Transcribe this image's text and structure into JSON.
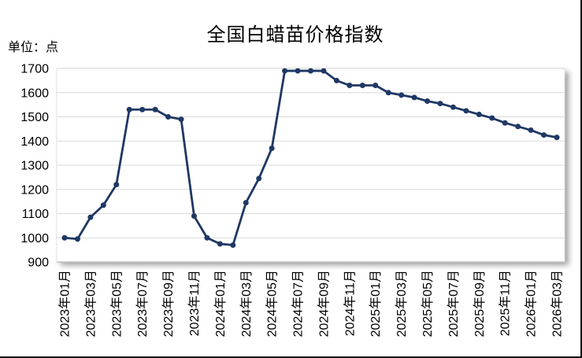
{
  "chart": {
    "title": "全国白蜡苗价格指数",
    "unit_label": "单位：点"
  },
  "chart_data": {
    "type": "line",
    "title": "全国白蜡苗价格指数",
    "ylabel": "单位：点",
    "xlabel": "",
    "grid": "horizontal",
    "legend_position": "none",
    "line_color": "#1f3864",
    "marker": "circle",
    "ylim": [
      900,
      1700
    ],
    "y_ticks": [
      1700,
      1600,
      1500,
      1400,
      1300,
      1200,
      1100,
      1000,
      900
    ],
    "x": [
      "2023-01",
      "2023-02",
      "2023-03",
      "2023-04",
      "2023-05",
      "2023-06",
      "2023-07",
      "2023-08",
      "2023-09",
      "2023-10",
      "2023-11",
      "2023-12",
      "2024-01",
      "2024-02",
      "2024-03",
      "2024-04",
      "2024-05",
      "2024-06",
      "2024-07",
      "2024-08",
      "2024-09",
      "2024-10",
      "2024-11",
      "2024-12",
      "2025-01",
      "2025-02",
      "2025-03",
      "2025-04",
      "2025-05",
      "2025-06",
      "2025-07",
      "2025-08",
      "2025-09",
      "2025-10",
      "2025-11",
      "2025-12",
      "2026-01",
      "2026-02",
      "2026-03"
    ],
    "values": [
      1000,
      995,
      1085,
      1135,
      1220,
      1530,
      1530,
      1530,
      1500,
      1490,
      1090,
      1000,
      975,
      970,
      1145,
      1245,
      1370,
      1690,
      1690,
      1690,
      1690,
      1650,
      1630,
      1630,
      1630,
      1600,
      1590,
      1580,
      1565,
      1555,
      1540,
      1525,
      1510,
      1495,
      1475,
      1460,
      1445,
      1425,
      1415
    ],
    "x_tick_labels": [
      "2023年01月",
      "2023年03月",
      "2023年05月",
      "2023年07月",
      "2023年09月",
      "2023年11月",
      "2024年01月",
      "2024年03月",
      "2024年05月",
      "2024年07月",
      "2024年09月",
      "2024年11月",
      "2025年01月",
      "2025年03月",
      "2025年05月",
      "2025年07月",
      "2025年09月",
      "2025年11月",
      "2026年01月",
      "2026年03月"
    ]
  },
  "colors": {
    "line": "#1f3864",
    "gridline": "#d9d9d9",
    "axis_line": "#bfbfbf",
    "plot_border": "#e3e3e3",
    "frame_border": "#111111",
    "text": "#000000",
    "background": "#ffffff"
  }
}
